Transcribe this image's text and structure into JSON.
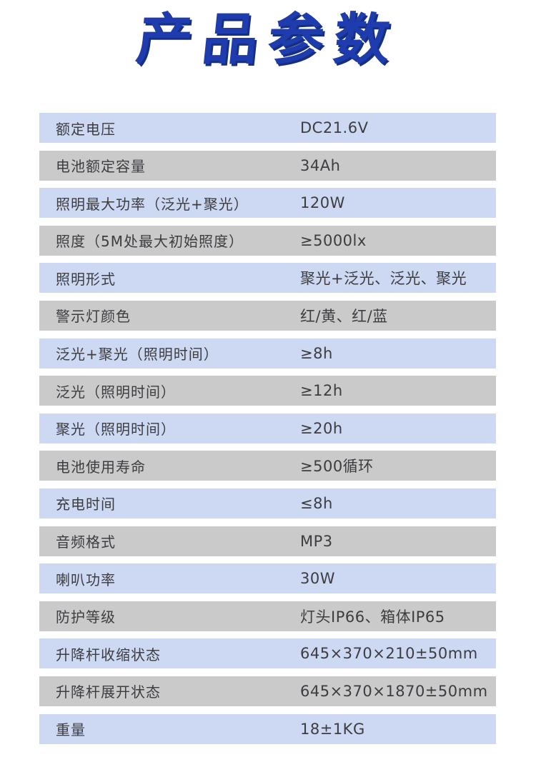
{
  "title": "产品参数",
  "colors": {
    "title_blue": "#1e3cae",
    "row_blue": "#cdd8f3",
    "row_gray": "#cacaca",
    "text": "#3d3d41"
  },
  "table": {
    "rows": [
      {
        "label": "额定电压",
        "value": "DC21.6V"
      },
      {
        "label": "电池额定容量",
        "value": "34Ah"
      },
      {
        "label": "照明最大功率（泛光+聚光）",
        "value": "120W"
      },
      {
        "label": "照度（5M处最大初始照度）",
        "value": "≥5000lx"
      },
      {
        "label": "照明形式",
        "value": "聚光+泛光、泛光、聚光"
      },
      {
        "label": "警示灯颜色",
        "value": "红/黄、红/蓝"
      },
      {
        "label": "泛光+聚光（照明时间）",
        "value": "≥8h"
      },
      {
        "label": "泛光（照明时间）",
        "value": "≥12h"
      },
      {
        "label": "聚光（照明时间）",
        "value": "≥20h"
      },
      {
        "label": "电池使用寿命",
        "value": "≥500循环"
      },
      {
        "label": "充电时间",
        "value": "≤8h"
      },
      {
        "label": "音频格式",
        "value": "MP3"
      },
      {
        "label": "喇叭功率",
        "value": "30W"
      },
      {
        "label": "防护等级",
        "value": "灯头IP66、箱体IP65"
      },
      {
        "label": "升降杆收缩状态",
        "value": "645×370×210±50mm"
      },
      {
        "label": "升降杆展开状态",
        "value": "645×370×1870±50mm"
      },
      {
        "label": "重量",
        "value": "18±1KG"
      }
    ]
  }
}
